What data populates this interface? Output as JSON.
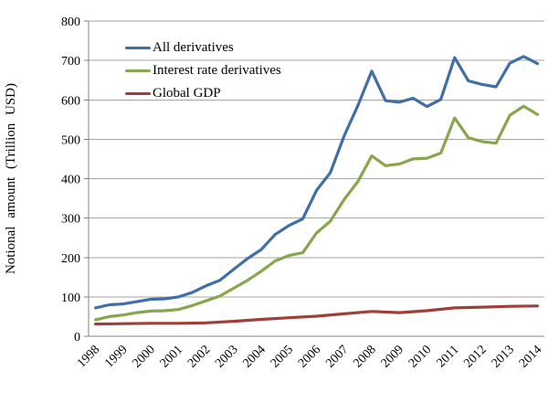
{
  "chart_data": {
    "type": "line",
    "title": "",
    "ylabel": "Notional amount (Trillion  USD)",
    "ylim": [
      0,
      800
    ],
    "ytick_step": 100,
    "ytick_labels": [
      "0",
      "100",
      "200",
      "300",
      "400",
      "500",
      "600",
      "700",
      "800"
    ],
    "x_tick_labels": [
      "1998",
      "1999",
      "2000",
      "2001",
      "2002",
      "2003",
      "2004",
      "2005",
      "2006",
      "2007",
      "2008",
      "2009",
      "2010",
      "2011",
      "2012",
      "2013",
      "2014"
    ],
    "grid": true,
    "legend_position": "upper-left-inside",
    "axis_color": "#808080",
    "gridline_color": "#A6A6A6",
    "series": [
      {
        "name": "All derivatives",
        "color": "#3F6FA6",
        "points_per_year": 2,
        "start_year": 1998,
        "values": [
          72,
          80,
          82,
          88,
          94,
          95,
          100,
          111,
          128,
          142,
          170,
          197,
          220,
          258,
          281,
          298,
          370,
          415,
          508,
          586,
          673,
          598,
          594,
          604,
          583,
          601,
          707,
          648,
          639,
          633,
          693,
          710,
          692
        ]
      },
      {
        "name": "Interest rate derivatives",
        "color": "#89A54E",
        "points_per_year": 2,
        "start_year": 1998,
        "values": [
          42,
          50,
          54,
          60,
          64,
          65,
          68,
          78,
          90,
          102,
          122,
          142,
          165,
          191,
          205,
          212,
          262,
          292,
          347,
          393,
          458,
          433,
          437,
          450,
          452,
          465,
          554,
          504,
          494,
          490,
          561,
          584,
          563
        ]
      },
      {
        "name": "Global GDP",
        "color": "#9E4038",
        "points_per_year": 1,
        "start_year": 1998,
        "values": [
          31,
          32,
          33,
          33,
          34,
          38,
          43,
          47,
          51,
          57,
          63,
          60,
          65,
          72,
          74,
          76,
          77
        ]
      }
    ]
  }
}
